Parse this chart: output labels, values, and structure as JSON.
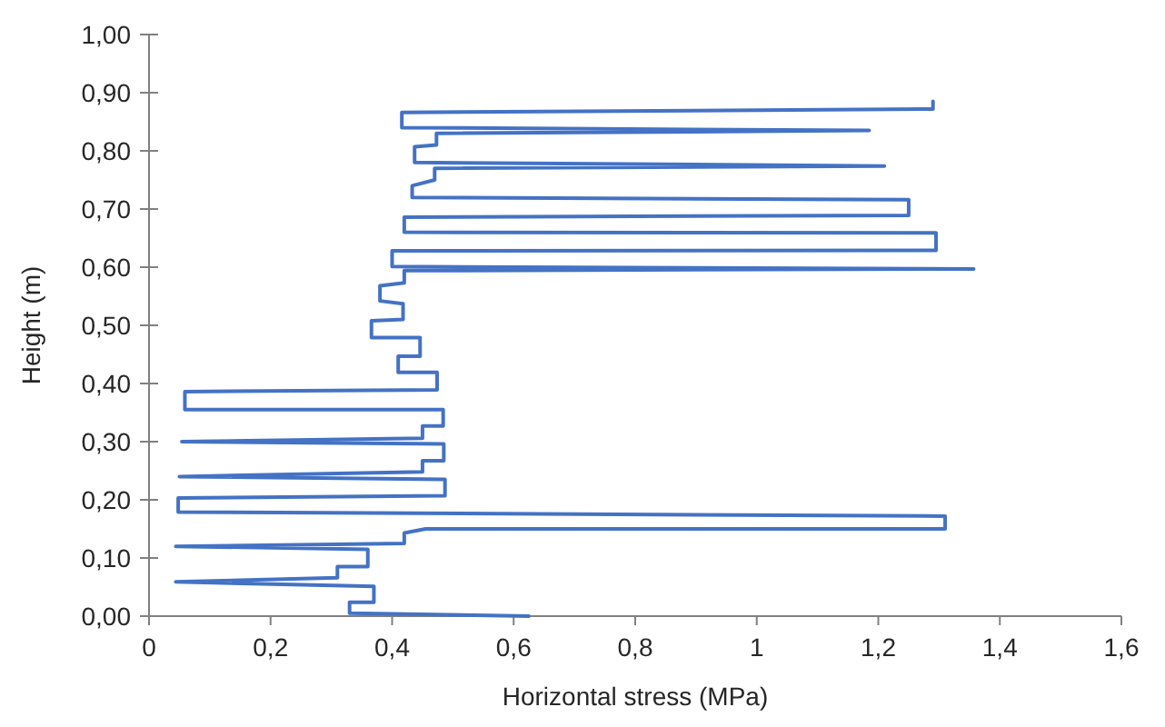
{
  "chart_data": {
    "type": "line",
    "xlabel": "Horizontal stress (MPa)",
    "ylabel": "Height (m)",
    "xlim": [
      0,
      1.6
    ],
    "ylim": [
      0,
      1
    ],
    "xticks": [
      0,
      {
        "value": 0.2,
        "label": "0,2"
      },
      {
        "value": 0.4,
        "label": "0,4"
      },
      {
        "value": 0.6,
        "label": "0,6"
      },
      {
        "value": 0.8,
        "label": "0,8"
      },
      1,
      {
        "value": 1.2,
        "label": "1,2"
      },
      {
        "value": 1.4,
        "label": "1,4"
      },
      {
        "value": 1.6,
        "label": "1,6"
      }
    ],
    "yticks": [
      {
        "value": 0,
        "label": "0,00"
      },
      {
        "value": 0.1,
        "label": "0,10"
      },
      {
        "value": 0.2,
        "label": "0,20"
      },
      {
        "value": 0.3,
        "label": "0,30"
      },
      {
        "value": 0.4,
        "label": "0,40"
      },
      {
        "value": 0.5,
        "label": "0,50"
      },
      {
        "value": 0.6,
        "label": "0,60"
      },
      {
        "value": 0.7,
        "label": "0,70"
      },
      {
        "value": 0.8,
        "label": "0,80"
      },
      {
        "value": 0.9,
        "label": "0,90"
      },
      {
        "value": 1,
        "label": "1,00"
      }
    ],
    "grid": false,
    "marker": "none",
    "line_style": "solid",
    "series": [
      {
        "color": "#4472c4",
        "x": [
          0.625,
          0.33,
          0.33,
          0.37,
          0.37,
          0.044,
          0.31,
          0.31,
          0.36,
          0.36,
          0.044,
          0.42,
          0.42,
          0.455,
          1.31,
          1.31,
          0.048,
          0.048,
          0.487,
          0.487,
          0.05,
          0.45,
          0.45,
          0.485,
          0.485,
          0.054,
          0.45,
          0.45,
          0.484,
          0.484,
          0.059,
          0.059,
          0.474,
          0.474,
          0.41,
          0.41,
          0.446,
          0.446,
          0.366,
          0.366,
          0.418,
          0.418,
          0.38,
          0.38,
          0.42,
          0.42,
          1.357,
          0.4,
          0.4,
          1.295,
          1.295,
          0.42,
          0.42,
          1.25,
          1.25,
          0.433,
          0.433,
          0.47,
          0.47,
          1.21,
          0.437,
          0.437,
          0.473,
          0.473,
          1.185,
          0.416,
          0.416,
          1.29,
          1.29
        ],
        "values": [
          0,
          0.005,
          0.024,
          0.024,
          0.051,
          0.059,
          0.066,
          0.085,
          0.085,
          0.115,
          0.12,
          0.125,
          0.143,
          0.15,
          0.15,
          0.172,
          0.179,
          0.203,
          0.207,
          0.235,
          0.24,
          0.248,
          0.267,
          0.267,
          0.296,
          0.3,
          0.306,
          0.327,
          0.327,
          0.355,
          0.355,
          0.386,
          0.389,
          0.419,
          0.419,
          0.447,
          0.447,
          0.479,
          0.479,
          0.508,
          0.51,
          0.537,
          0.542,
          0.568,
          0.573,
          0.594,
          0.597,
          0.601,
          0.628,
          0.629,
          0.659,
          0.66,
          0.686,
          0.689,
          0.716,
          0.72,
          0.74,
          0.75,
          0.77,
          0.774,
          0.78,
          0.807,
          0.81,
          0.83,
          0.835,
          0.84,
          0.866,
          0.872,
          0.885
        ]
      }
    ]
  }
}
